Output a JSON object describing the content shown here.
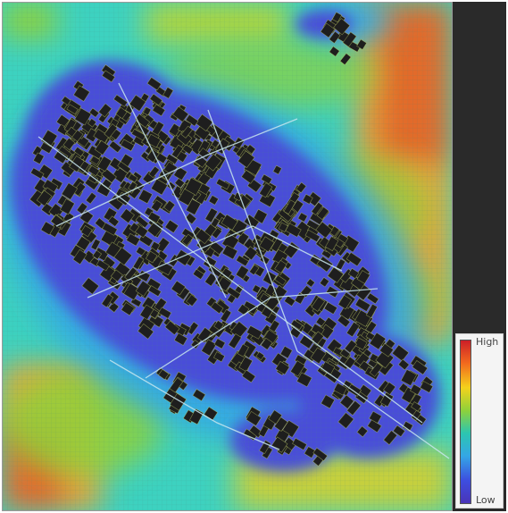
{
  "legend": {
    "high_label": "High",
    "low_label": "Low",
    "gradient_colors": [
      "#cc1f28",
      "#f26a1e",
      "#f4d21c",
      "#8fd13a",
      "#2cc6b0",
      "#34a7e6",
      "#3d4ee0",
      "#4a35b8"
    ]
  },
  "map": {
    "background_color": "#3dd2c0",
    "grid_color": "#4a8a7a",
    "building_color": "#1e1e1e",
    "building_outline_color": "#c8d66a",
    "low_zone_color": "#4a4ed8",
    "high_zone_color": "#e8a63a"
  }
}
